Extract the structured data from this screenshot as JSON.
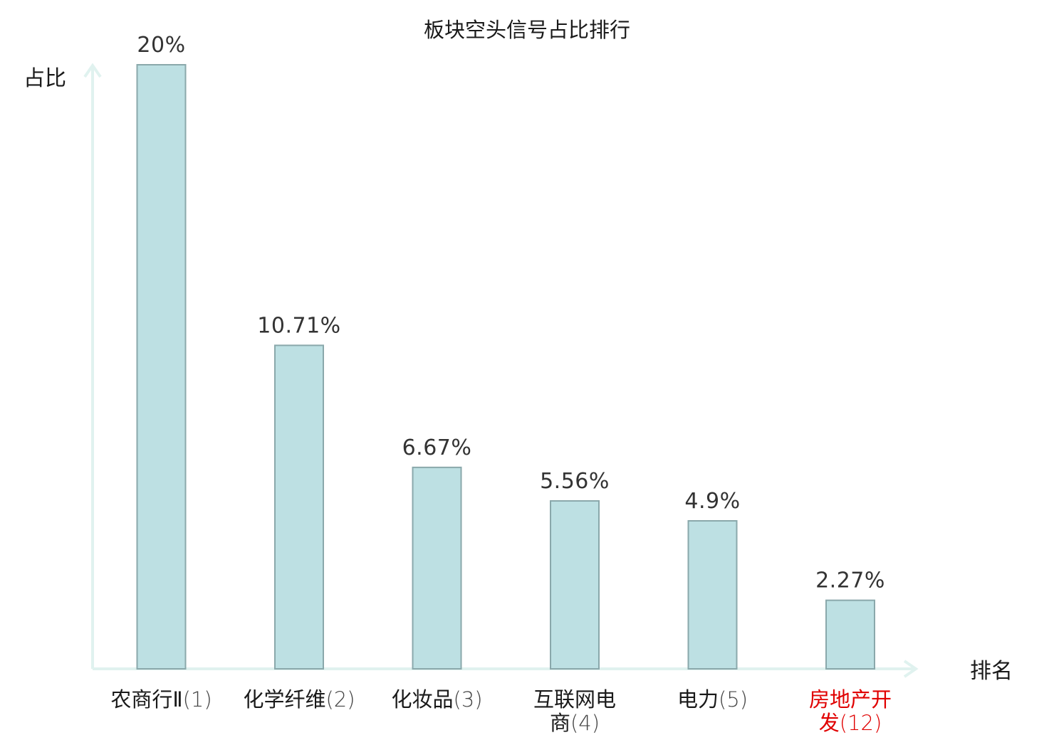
{
  "chart_data": {
    "type": "bar",
    "title": "板块空头信号占比排行",
    "ylabel": "占比",
    "xlabel": "排名",
    "categories": [
      {
        "lines": [
          {
            "name": "农商行Ⅱ",
            "rank": "(1)"
          }
        ]
      },
      {
        "lines": [
          {
            "name": "化学纤维",
            "rank": "(2)"
          }
        ]
      },
      {
        "lines": [
          {
            "name": "化妆品",
            "rank": "(3)"
          }
        ]
      },
      {
        "lines": [
          {
            "name": "互联网电",
            "rank": ""
          },
          {
            "name": "商",
            "rank": "(4)"
          }
        ]
      },
      {
        "lines": [
          {
            "name": "电力",
            "rank": "(5)"
          }
        ]
      },
      {
        "lines": [
          {
            "name": "房地产开",
            "rank": ""
          },
          {
            "name": "发",
            "rank": "(12)"
          }
        ],
        "highlight": true
      }
    ],
    "values": [
      20,
      10.71,
      6.67,
      5.56,
      4.9,
      2.27
    ],
    "value_labels": [
      "20%",
      "10.71%",
      "6.67%",
      "5.56%",
      "4.9%",
      "2.27%"
    ],
    "ylim": [
      0,
      20
    ],
    "grid": false,
    "colors": {
      "bar_fill": "#bde0e3",
      "bar_stroke": "#8aa8ab",
      "axis": "#e0f2ef",
      "highlight_text": "#e00000"
    }
  }
}
